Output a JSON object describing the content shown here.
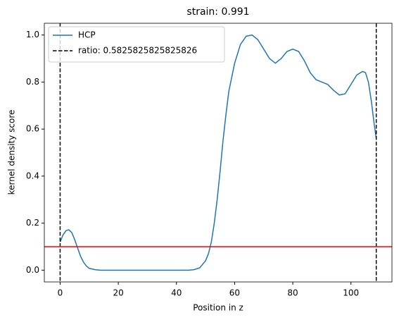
{
  "chart_data": {
    "type": "line",
    "title": "strain: 0.991",
    "xlabel": "Position in z",
    "ylabel": "kernel density score",
    "series": [
      {
        "name": "HCP",
        "color": "#1f77b4",
        "x": [
          0,
          1,
          2,
          3,
          4,
          5,
          6,
          7,
          8,
          9,
          10,
          12,
          14,
          20,
          30,
          40,
          44,
          46,
          48,
          50,
          51,
          52,
          53,
          54,
          55,
          56,
          57,
          58,
          60,
          62,
          64,
          66,
          68,
          70,
          72,
          74,
          76,
          78,
          80,
          82,
          84,
          86,
          88,
          90,
          92,
          94,
          96,
          98,
          100,
          102,
          104,
          105,
          106,
          107,
          108,
          108.7
        ],
        "values": [
          0.12,
          0.15,
          0.168,
          0.172,
          0.16,
          0.13,
          0.095,
          0.06,
          0.035,
          0.018,
          0.008,
          0.002,
          0,
          0,
          0,
          0,
          0,
          0.002,
          0.01,
          0.04,
          0.07,
          0.12,
          0.2,
          0.3,
          0.42,
          0.55,
          0.66,
          0.76,
          0.88,
          0.96,
          0.995,
          1.0,
          0.98,
          0.94,
          0.9,
          0.88,
          0.9,
          0.93,
          0.94,
          0.93,
          0.89,
          0.84,
          0.81,
          0.8,
          0.79,
          0.765,
          0.745,
          0.75,
          0.79,
          0.83,
          0.845,
          0.84,
          0.8,
          0.72,
          0.62,
          0.56
        ]
      }
    ],
    "vlines": {
      "name": "ratio: 0.5825825825825826",
      "color": "#000000",
      "x": [
        0,
        108.7
      ]
    },
    "hline": {
      "value": 0.1,
      "color": "#ff0000"
    },
    "xlim": [
      -5.43,
      114.1
    ],
    "ylim": [
      -0.05,
      1.05
    ],
    "xticks": [
      0,
      20,
      40,
      60,
      80,
      100
    ],
    "yticks": [
      {
        "value": 0,
        "label": "0.0"
      },
      0.2,
      0.4,
      0.6,
      0.8,
      {
        "value": 1,
        "label": "1.0"
      }
    ],
    "legend": "upper left"
  }
}
